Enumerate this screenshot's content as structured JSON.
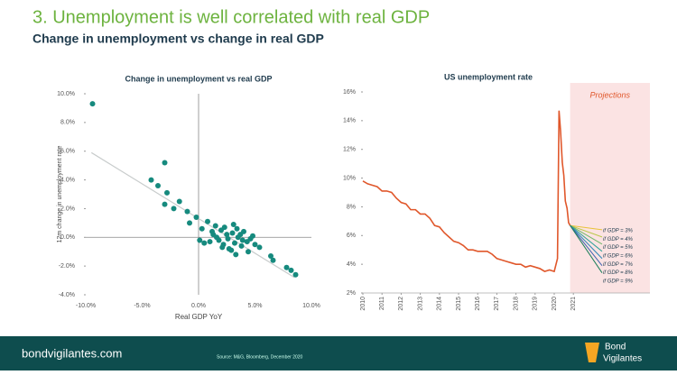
{
  "header": {
    "title": "3. Unemployment is well correlated with real GDP",
    "subtitle": "Change in unemployment vs change in real GDP"
  },
  "footer": {
    "site": "bondvigilantes.com",
    "source": "Source: M&G, Bloomberg, December 2020",
    "logo": [
      "Bond",
      "Vigilantes"
    ]
  },
  "chart_data": [
    {
      "type": "scatter",
      "title": "Change in unemployment vs real GDP",
      "x_label": "Real GDP YoY",
      "y_label": "12m change in unemployment rate",
      "color": "#168a7e",
      "x": [
        -9.4,
        -3.0,
        -4.2,
        -3.6,
        -2.8,
        -3.0,
        -1.7,
        -1.0,
        -0.2,
        -2.2,
        -0.8,
        0.3,
        0.8,
        1.2,
        1.5,
        1.8,
        2.0,
        2.2,
        2.5,
        2.7,
        3.0,
        3.2,
        3.5,
        3.8,
        4.0,
        4.3,
        4.6,
        5.0,
        5.4,
        1.0,
        1.6,
        2.3,
        2.9,
        3.4,
        3.9,
        4.4,
        0.5,
        2.1,
        3.1,
        3.7,
        6.4,
        6.6,
        7.8,
        8.2,
        8.6,
        1.3,
        2.6,
        4.8,
        0.1,
        3.3
      ],
      "values": [
        9.3,
        5.2,
        4.0,
        3.6,
        3.1,
        2.3,
        2.5,
        1.8,
        1.4,
        2.0,
        1.0,
        0.6,
        1.1,
        0.4,
        0.8,
        -0.2,
        0.5,
        -0.5,
        0.2,
        -0.8,
        0.3,
        -0.4,
        0.0,
        -0.6,
        0.4,
        -0.3,
        -0.1,
        -0.5,
        -0.7,
        -0.3,
        0.0,
        0.7,
        -0.9,
        0.6,
        -0.2,
        -1.0,
        -0.4,
        -0.7,
        0.9,
        0.2,
        -1.3,
        -1.6,
        -2.1,
        -2.3,
        -2.6,
        0.2,
        -0.1,
        0.1,
        -0.2,
        -1.2
      ],
      "trend_line": {
        "x": [
          -9.5,
          8.5
        ],
        "y": [
          5.9,
          -2.8
        ],
        "color": "#c8cccc"
      },
      "xlim": [
        -10,
        10
      ],
      "xticks": [
        {
          "value": -10,
          "label": "-10.0%"
        },
        {
          "value": -5,
          "label": "-5.0%"
        },
        {
          "value": 0,
          "label": "0.0%"
        },
        {
          "value": 5,
          "label": "5.0%"
        },
        {
          "value": 10,
          "label": "10.0%"
        }
      ],
      "ylim": [
        -4,
        10
      ],
      "yticks": [
        {
          "value": -4,
          "label": "-4.0%"
        },
        {
          "value": -2,
          "label": "-2.0%"
        },
        {
          "value": 0,
          "label": "0.0%"
        },
        {
          "value": 2,
          "label": "2.0%"
        },
        {
          "value": 4,
          "label": "4.0%"
        },
        {
          "value": 6,
          "label": "6.0%"
        },
        {
          "value": 8,
          "label": "8.0%"
        },
        {
          "value": 10,
          "label": "10.0%"
        }
      ]
    },
    {
      "type": "line",
      "title": "US unemployment rate",
      "shaded_region": {
        "x": [
          2020.83,
          2025
        ],
        "label": "Projections",
        "color": "#fbe3e3"
      },
      "series": [
        {
          "name": "US unemployment rate",
          "color": "#e0572b",
          "x": [
            2010,
            2010.25,
            2010.5,
            2010.75,
            2011,
            2011.25,
            2011.5,
            2011.75,
            2012,
            2012.25,
            2012.5,
            2012.75,
            2013,
            2013.25,
            2013.5,
            2013.75,
            2014,
            2014.25,
            2014.5,
            2014.75,
            2015,
            2015.25,
            2015.5,
            2015.75,
            2016,
            2016.25,
            2016.5,
            2016.75,
            2017,
            2017.25,
            2017.5,
            2017.75,
            2018,
            2018.25,
            2018.5,
            2018.75,
            2019,
            2019.25,
            2019.5,
            2019.75,
            2020,
            2020.17,
            2020.25,
            2020.33,
            2020.42,
            2020.5,
            2020.58,
            2020.67,
            2020.75,
            2020.83
          ],
          "values": [
            9.8,
            9.6,
            9.5,
            9.4,
            9.1,
            9.1,
            9.0,
            8.6,
            8.3,
            8.2,
            7.8,
            7.8,
            7.5,
            7.5,
            7.2,
            6.7,
            6.6,
            6.2,
            5.9,
            5.6,
            5.5,
            5.3,
            5.0,
            5.0,
            4.9,
            4.9,
            4.9,
            4.7,
            4.4,
            4.3,
            4.2,
            4.1,
            4.0,
            4.0,
            3.8,
            3.9,
            3.8,
            3.7,
            3.5,
            3.6,
            3.5,
            4.4,
            14.7,
            13.3,
            11.1,
            10.2,
            8.4,
            7.9,
            6.9,
            6.7
          ]
        },
        {
          "name": "if GDP = 3%",
          "color": "#e8c33a",
          "x": [
            2020.83,
            2022.5
          ],
          "values": [
            6.7,
            6.4
          ]
        },
        {
          "name": "if GDP = 4%",
          "color": "#b9c84a",
          "x": [
            2020.83,
            2022.5
          ],
          "values": [
            6.7,
            5.9
          ]
        },
        {
          "name": "if GDP = 5%",
          "color": "#6fb86a",
          "x": [
            2020.83,
            2022.5
          ],
          "values": [
            6.7,
            5.4
          ]
        },
        {
          "name": "if GDP = 6%",
          "color": "#2fa39a",
          "x": [
            2020.83,
            2022.5
          ],
          "values": [
            6.7,
            4.9
          ]
        },
        {
          "name": "if GDP = 7%",
          "color": "#2a86b8",
          "x": [
            2020.83,
            2022.5
          ],
          "values": [
            6.7,
            4.4
          ]
        },
        {
          "name": "if GDP = 8%",
          "color": "#3f62b0",
          "x": [
            2020.83,
            2022.5
          ],
          "values": [
            6.7,
            3.9
          ]
        },
        {
          "name": "if GDP = 9%",
          "color": "#1d7f5a",
          "x": [
            2020.83,
            2022.5
          ],
          "values": [
            6.7,
            3.4
          ]
        }
      ],
      "xlim": [
        2010,
        2025
      ],
      "xticks": [
        2010,
        2011,
        2012,
        2013,
        2014,
        2015,
        2016,
        2017,
        2018,
        2019,
        2020,
        2021
      ],
      "ylim": [
        2,
        16
      ],
      "yticks": [
        {
          "value": 2,
          "label": "2%"
        },
        {
          "value": 4,
          "label": "4%"
        },
        {
          "value": 6,
          "label": "6%"
        },
        {
          "value": 8,
          "label": "8%"
        },
        {
          "value": 10,
          "label": "10%"
        },
        {
          "value": 12,
          "label": "12%"
        },
        {
          "value": 14,
          "label": "14%"
        },
        {
          "value": 16,
          "label": "16%"
        }
      ]
    }
  ]
}
